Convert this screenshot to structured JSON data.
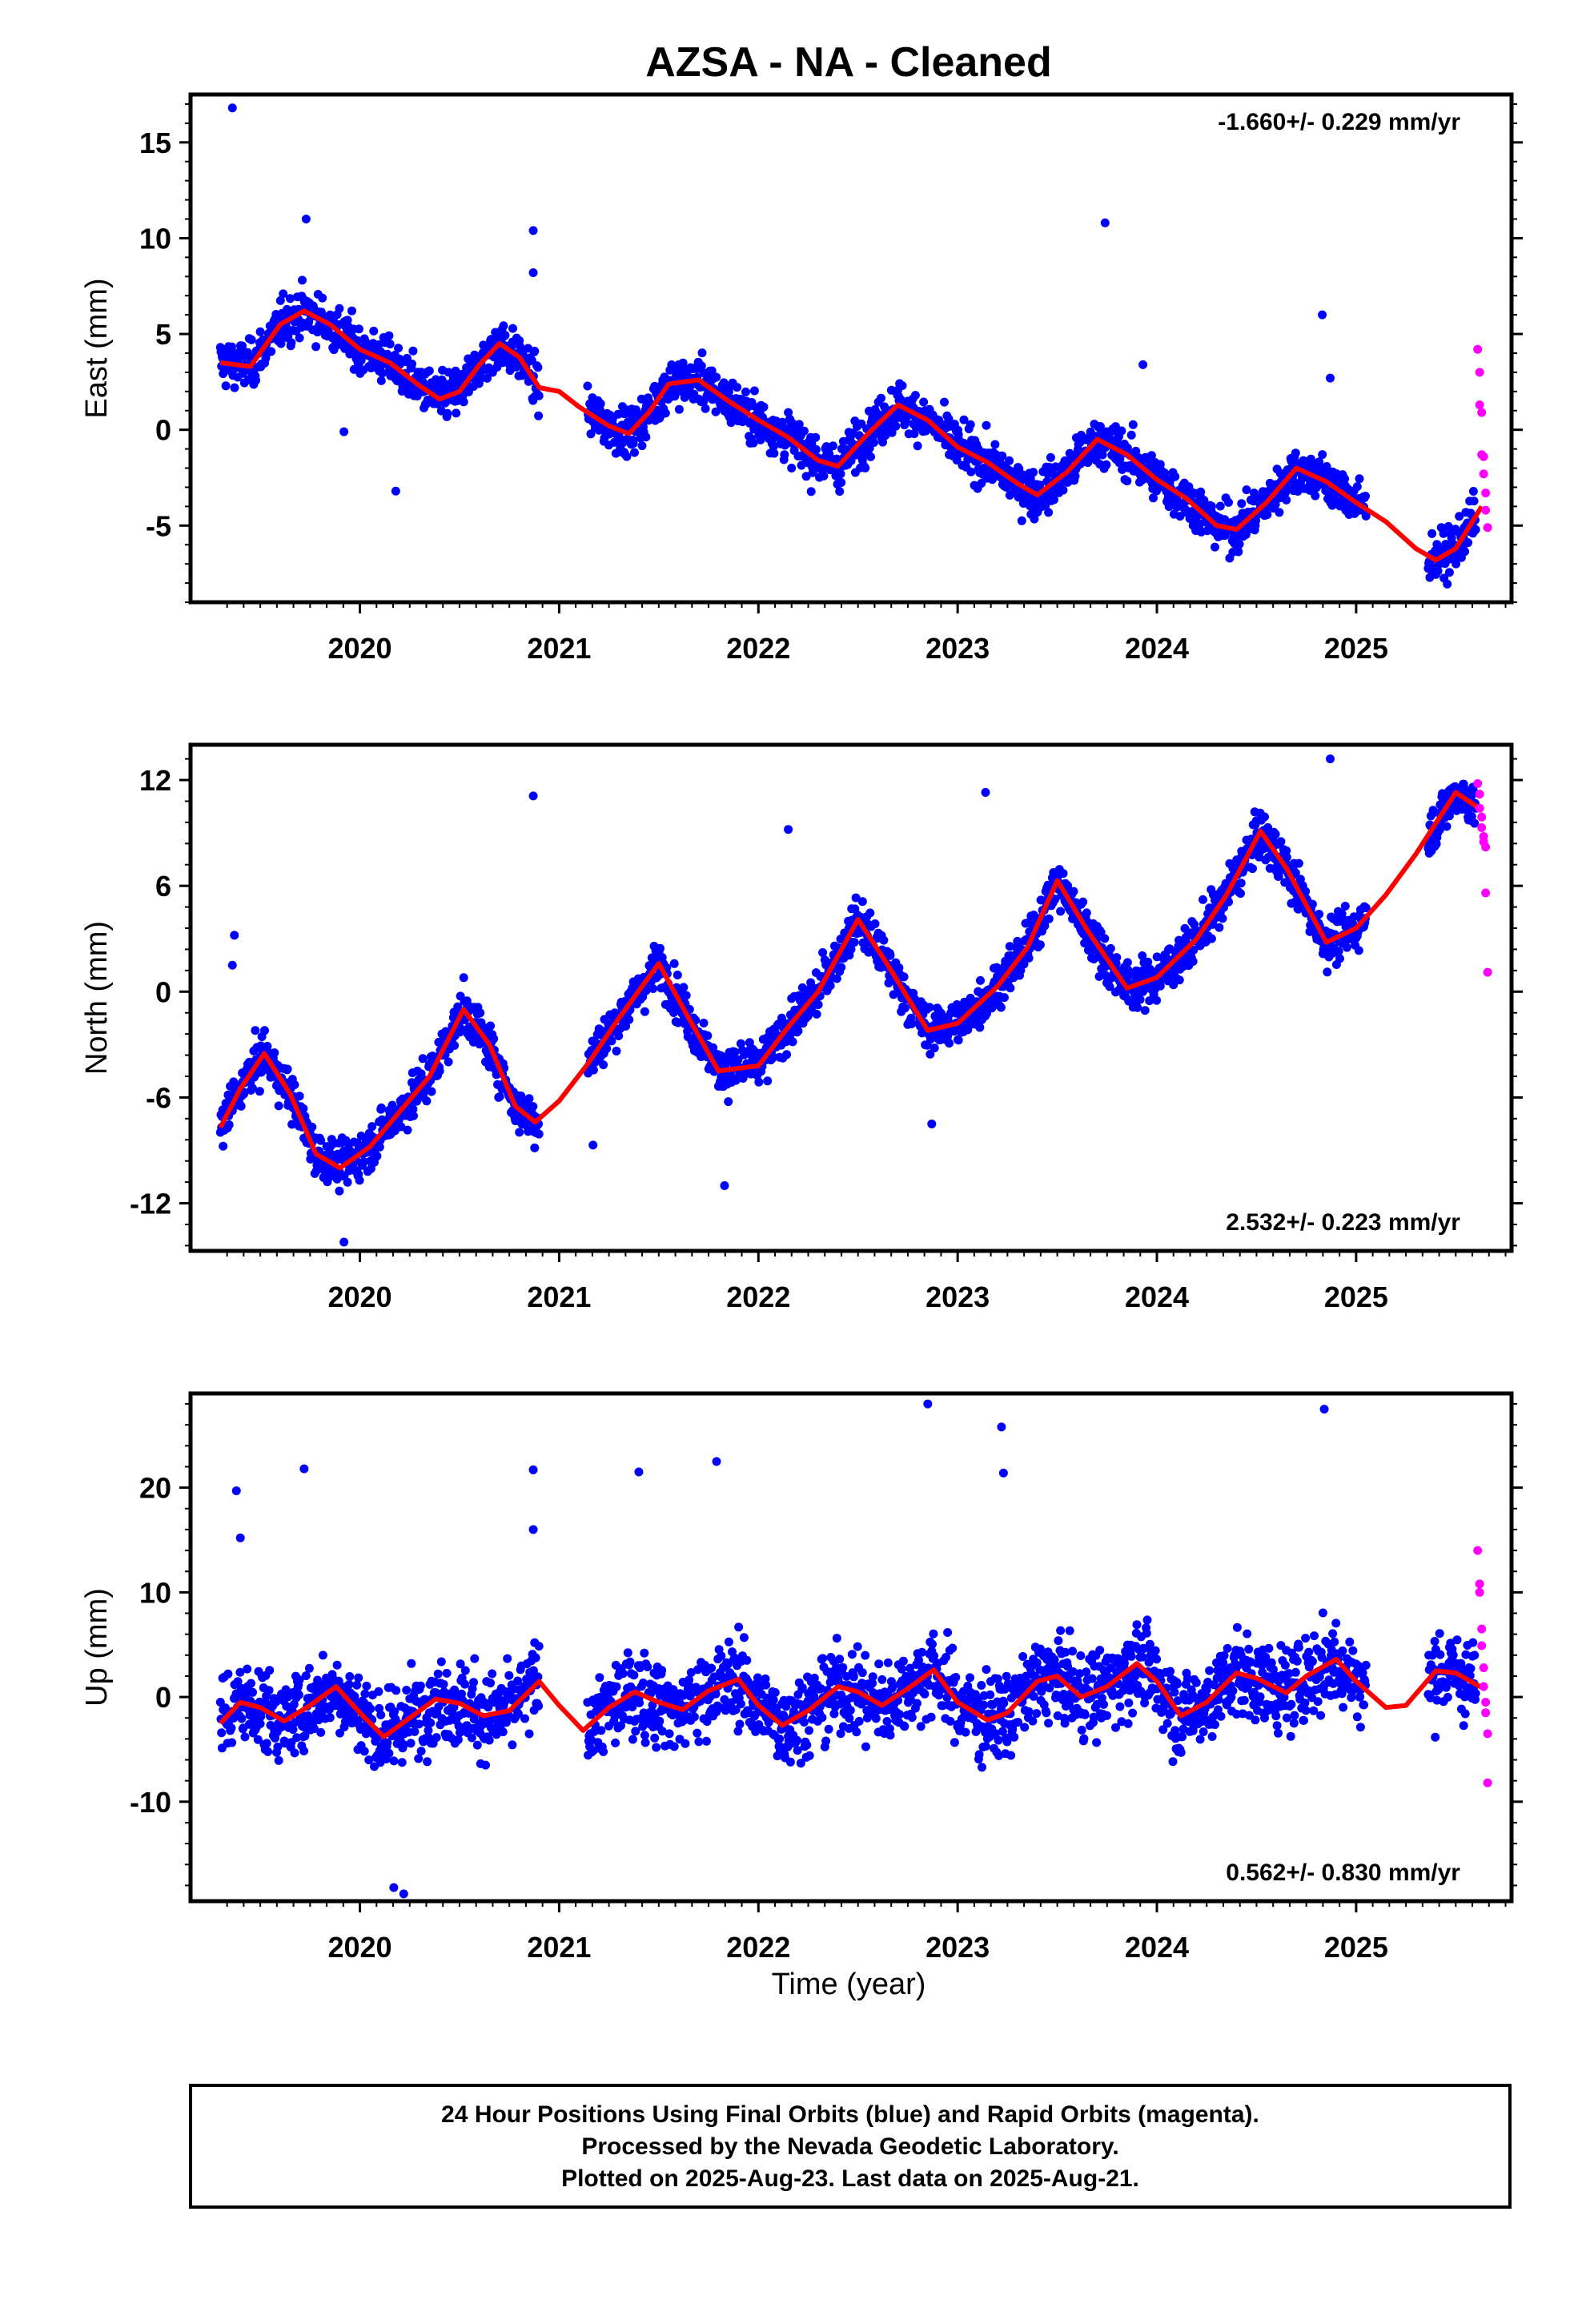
{
  "title": "AZSA  - NA - Cleaned",
  "xlabel": "Time (year)",
  "footer": {
    "line1": "24 Hour Positions Using Final Orbits (blue) and Rapid Orbits (magenta).",
    "line2": "Processed by the Nevada Geodetic Laboratory.",
    "line3": "Plotted on 2025-Aug-23. Last data on 2025-Aug-21."
  },
  "colors": {
    "final": "#0000ff",
    "rapid": "#ff00ff",
    "fit": "#ff0000",
    "frame": "#000000"
  },
  "chart_data": [
    {
      "type": "scatter",
      "component": "east",
      "ylabel": "East (mm)",
      "rate_label": "-1.660+/- 0.229 mm/yr",
      "rate_position": "top-right",
      "xlim": [
        2019.15,
        2025.78
      ],
      "ylim": [
        -9,
        17.5
      ],
      "yticks": [
        15,
        10,
        5,
        0,
        -5
      ],
      "xticks": [
        "2020",
        "2021",
        "2022",
        "2023",
        "2024",
        "2025"
      ],
      "fit_curve": {
        "x": [
          2019.3,
          2019.45,
          2019.6,
          2019.72,
          2019.85,
          2020.0,
          2020.15,
          2020.3,
          2020.4,
          2020.5,
          2020.6,
          2020.7,
          2020.8,
          2020.9,
          2021.0,
          2021.1,
          2021.25,
          2021.35,
          2021.45,
          2021.55,
          2021.7,
          2021.85,
          2022.0,
          2022.15,
          2022.3,
          2022.4,
          2022.55,
          2022.7,
          2022.85,
          2023.0,
          2023.15,
          2023.3,
          2023.4,
          2023.55,
          2023.7,
          2023.85,
          2024.0,
          2024.15,
          2024.3,
          2024.4,
          2024.55,
          2024.7,
          2024.85,
          2025.0,
          2025.15,
          2025.3,
          2025.4,
          2025.5,
          2025.63
        ],
        "y": [
          3.5,
          3.3,
          5.5,
          6.2,
          5.5,
          4.2,
          3.5,
          2.3,
          1.6,
          2.0,
          3.4,
          4.5,
          3.8,
          2.2,
          2.0,
          1.2,
          0.2,
          -0.2,
          0.9,
          2.4,
          2.6,
          1.5,
          0.5,
          -0.4,
          -1.6,
          -1.9,
          -0.2,
          1.3,
          0.5,
          -0.9,
          -1.7,
          -2.8,
          -3.4,
          -2.2,
          -0.5,
          -1.3,
          -2.6,
          -3.6,
          -5.0,
          -5.2,
          -3.8,
          -2.0,
          -2.7,
          -3.8,
          -4.8,
          -6.2,
          -6.8,
          -6.2,
          -4.0
        ]
      },
      "rapid_points": {
        "x": [
          2025.61,
          2025.62,
          2025.62,
          2025.63,
          2025.63,
          2025.64,
          2025.64,
          2025.65,
          2025.65,
          2025.66
        ],
        "y": [
          4.2,
          3.0,
          1.3,
          0.9,
          -1.3,
          -1.4,
          -2.3,
          -3.3,
          -4.2,
          -5.1
        ]
      },
      "outliers": {
        "x": [
          2019.36,
          2019.73,
          2019.92,
          2020.18,
          2020.87,
          2020.87,
          2023.74,
          2023.93,
          2024.83,
          2024.87
        ],
        "y": [
          16.8,
          11.0,
          -0.1,
          -3.2,
          10.4,
          8.2,
          10.8,
          3.4,
          6.0,
          2.7
        ]
      }
    },
    {
      "type": "scatter",
      "component": "north",
      "ylabel": "North (mm)",
      "rate_label": "2.532+/- 0.223 mm/yr",
      "rate_position": "bottom-right",
      "xlim": [
        2019.15,
        2025.78
      ],
      "ylim": [
        -14.7,
        14
      ],
      "yticks": [
        12,
        6,
        0,
        -6,
        -12
      ],
      "xticks": [
        "2020",
        "2021",
        "2022",
        "2023",
        "2024",
        "2025"
      ],
      "fit_curve": {
        "x": [
          2019.3,
          2019.4,
          2019.52,
          2019.65,
          2019.78,
          2019.9,
          2020.05,
          2020.2,
          2020.35,
          2020.52,
          2020.65,
          2020.78,
          2020.88,
          2021.0,
          2021.15,
          2021.3,
          2021.5,
          2021.65,
          2021.8,
          2022.0,
          2022.15,
          2022.3,
          2022.5,
          2022.65,
          2022.85,
          2023.0,
          2023.2,
          2023.35,
          2023.5,
          2023.65,
          2023.85,
          2024.0,
          2024.2,
          2024.35,
          2024.52,
          2024.65,
          2024.85,
          2025.0,
          2025.15,
          2025.3,
          2025.5,
          2025.63
        ],
        "y": [
          -7.7,
          -5.5,
          -3.5,
          -5.8,
          -9.2,
          -10.0,
          -8.8,
          -6.8,
          -4.8,
          -1.0,
          -3.0,
          -6.5,
          -7.4,
          -6.2,
          -4.0,
          -1.5,
          1.6,
          -1.5,
          -4.5,
          -4.2,
          -2.0,
          0.0,
          4.1,
          1.5,
          -2.2,
          -1.8,
          0.3,
          2.5,
          6.3,
          3.5,
          0.2,
          0.8,
          3.0,
          5.5,
          9.1,
          7.0,
          2.8,
          3.6,
          5.5,
          7.8,
          11.3,
          10.3
        ]
      },
      "rapid_points": {
        "x": [
          2025.61,
          2025.62,
          2025.62,
          2025.63,
          2025.63,
          2025.64,
          2025.64,
          2025.65,
          2025.65,
          2025.66
        ],
        "y": [
          11.8,
          11.2,
          10.4,
          9.9,
          9.3,
          8.8,
          8.5,
          8.2,
          5.6,
          1.1
        ]
      },
      "outliers": {
        "x": [
          2019.37,
          2019.36,
          2019.92,
          2020.87,
          2021.17,
          2021.83,
          2022.15,
          2022.87,
          2023.14,
          2024.87
        ],
        "y": [
          3.2,
          1.5,
          -14.2,
          11.1,
          -8.7,
          -11.0,
          9.2,
          -7.5,
          11.3,
          13.2
        ]
      }
    },
    {
      "type": "scatter",
      "component": "up",
      "ylabel": "Up (mm)",
      "rate_label": "0.562+/- 0.830 mm/yr",
      "rate_position": "bottom-right",
      "xlim": [
        2019.15,
        2025.78
      ],
      "ylim": [
        -19.5,
        29
      ],
      "yticks": [
        20,
        10,
        0,
        -10
      ],
      "xticks": [
        "2020",
        "2021",
        "2022",
        "2023",
        "2024",
        "2025"
      ],
      "fit_curve": {
        "x": [
          2019.3,
          2019.4,
          2019.5,
          2019.62,
          2019.75,
          2019.88,
          2020.0,
          2020.12,
          2020.25,
          2020.38,
          2020.5,
          2020.62,
          2020.75,
          2020.9,
          2021.0,
          2021.12,
          2021.25,
          2021.38,
          2021.5,
          2021.62,
          2021.75,
          2021.9,
          2022.0,
          2022.12,
          2022.25,
          2022.4,
          2022.5,
          2022.62,
          2022.75,
          2022.88,
          2023.0,
          2023.15,
          2023.25,
          2023.4,
          2023.5,
          2023.62,
          2023.75,
          2023.9,
          2024.0,
          2024.12,
          2024.25,
          2024.4,
          2024.5,
          2024.65,
          2024.75,
          2024.9,
          2025.0,
          2025.15,
          2025.25,
          2025.4,
          2025.5,
          2025.63
        ],
        "y": [
          -2.5,
          -0.5,
          -1.0,
          -2.3,
          -0.8,
          1.0,
          -1.5,
          -3.8,
          -2.0,
          -0.2,
          -0.6,
          -1.8,
          -1.3,
          1.5,
          -0.8,
          -3.2,
          -1.0,
          0.5,
          -0.5,
          -1.2,
          0.6,
          1.7,
          -0.8,
          -2.7,
          -1.3,
          1.0,
          0.5,
          -0.8,
          0.8,
          2.6,
          -0.5,
          -2.2,
          -1.5,
          1.5,
          2.0,
          0.0,
          1.0,
          3.2,
          1.5,
          -1.8,
          -0.5,
          2.3,
          1.8,
          0.4,
          2.0,
          3.6,
          1.5,
          -1.0,
          -0.8,
          2.5,
          2.3,
          0.9
        ]
      },
      "rapid_points": {
        "x": [
          2025.61,
          2025.62,
          2025.62,
          2025.63,
          2025.63,
          2025.64,
          2025.64,
          2025.65,
          2025.65,
          2025.66,
          2025.66
        ],
        "y": [
          14.0,
          10.8,
          10.0,
          6.5,
          4.9,
          2.8,
          1.0,
          -0.5,
          -1.5,
          -3.5,
          -8.2
        ]
      },
      "outliers": {
        "x": [
          2019.38,
          2019.4,
          2019.72,
          2020.17,
          2020.22,
          2020.87,
          2020.87,
          2021.4,
          2021.79,
          2022.85,
          2023.22,
          2023.23,
          2024.84
        ],
        "y": [
          19.7,
          15.2,
          21.8,
          -18.2,
          -18.8,
          21.7,
          16.0,
          21.5,
          22.5,
          28.0,
          25.8,
          21.4,
          27.5
        ]
      }
    }
  ]
}
